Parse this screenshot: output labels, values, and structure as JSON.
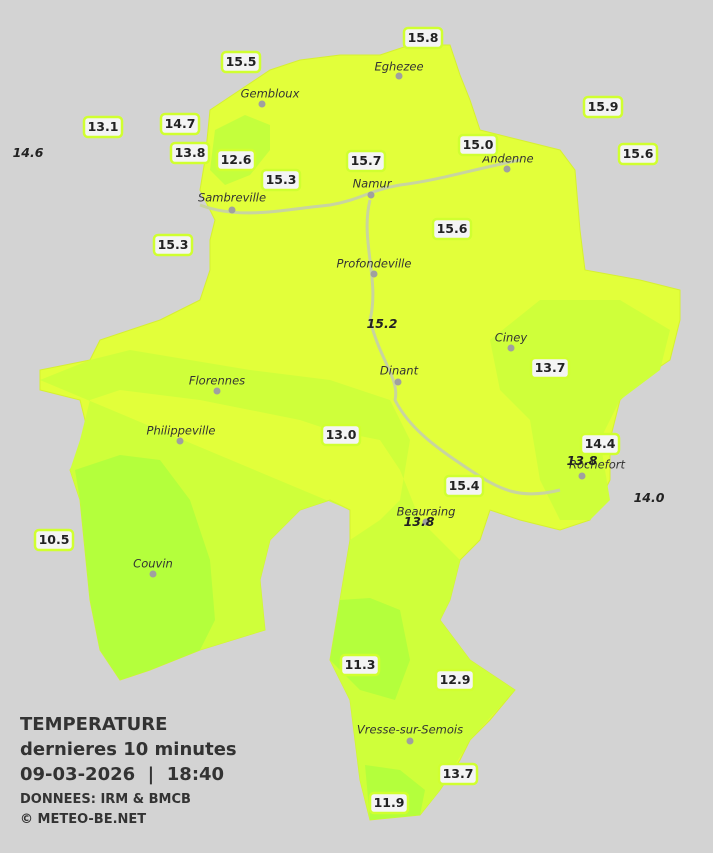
{
  "legend": {
    "title": "TEMPERATURE",
    "subtitle": "dernieres 10 minutes",
    "timestamp": "09-03-2026  |  18:40",
    "source": "DONNEES: IRM & BMCB",
    "copyright": "© METEO-BE.NET"
  },
  "cities": [
    "Eghezee",
    "Gembloux",
    "Andenne",
    "Namur",
    "Sambreville",
    "Profondeville",
    "Ciney",
    "Dinant",
    "Florennes",
    "Philippeville",
    "Rochefort",
    "Beauraing",
    "Couvin",
    "Vresse-sur-Semois"
  ],
  "stations": [
    {
      "value": "15.8",
      "italic": false
    },
    {
      "value": "15.5",
      "italic": false
    },
    {
      "value": "15.9",
      "italic": false
    },
    {
      "value": "13.1",
      "italic": false
    },
    {
      "value": "14.7",
      "italic": false
    },
    {
      "value": "14.6",
      "italic": true
    },
    {
      "value": "13.8",
      "italic": false
    },
    {
      "value": "12.6",
      "italic": false
    },
    {
      "value": "15.0",
      "italic": false
    },
    {
      "value": "15.6",
      "italic": false
    },
    {
      "value": "15.7",
      "italic": false
    },
    {
      "value": "15.3",
      "italic": false
    },
    {
      "value": "15.6",
      "italic": false
    },
    {
      "value": "15.3",
      "italic": false
    },
    {
      "value": "15.2",
      "italic": true
    },
    {
      "value": "13.7",
      "italic": false
    },
    {
      "value": "13.0",
      "italic": false
    },
    {
      "value": "14.4",
      "italic": false
    },
    {
      "value": "13.8",
      "italic": true
    },
    {
      "value": "15.4",
      "italic": false
    },
    {
      "value": "14.0",
      "italic": true
    },
    {
      "value": "13.8",
      "italic": true
    },
    {
      "value": "10.5",
      "italic": false
    },
    {
      "value": "11.3",
      "italic": false
    },
    {
      "value": "12.9",
      "italic": false
    },
    {
      "value": "13.7",
      "italic": false
    },
    {
      "value": "11.9",
      "italic": false
    }
  ]
}
